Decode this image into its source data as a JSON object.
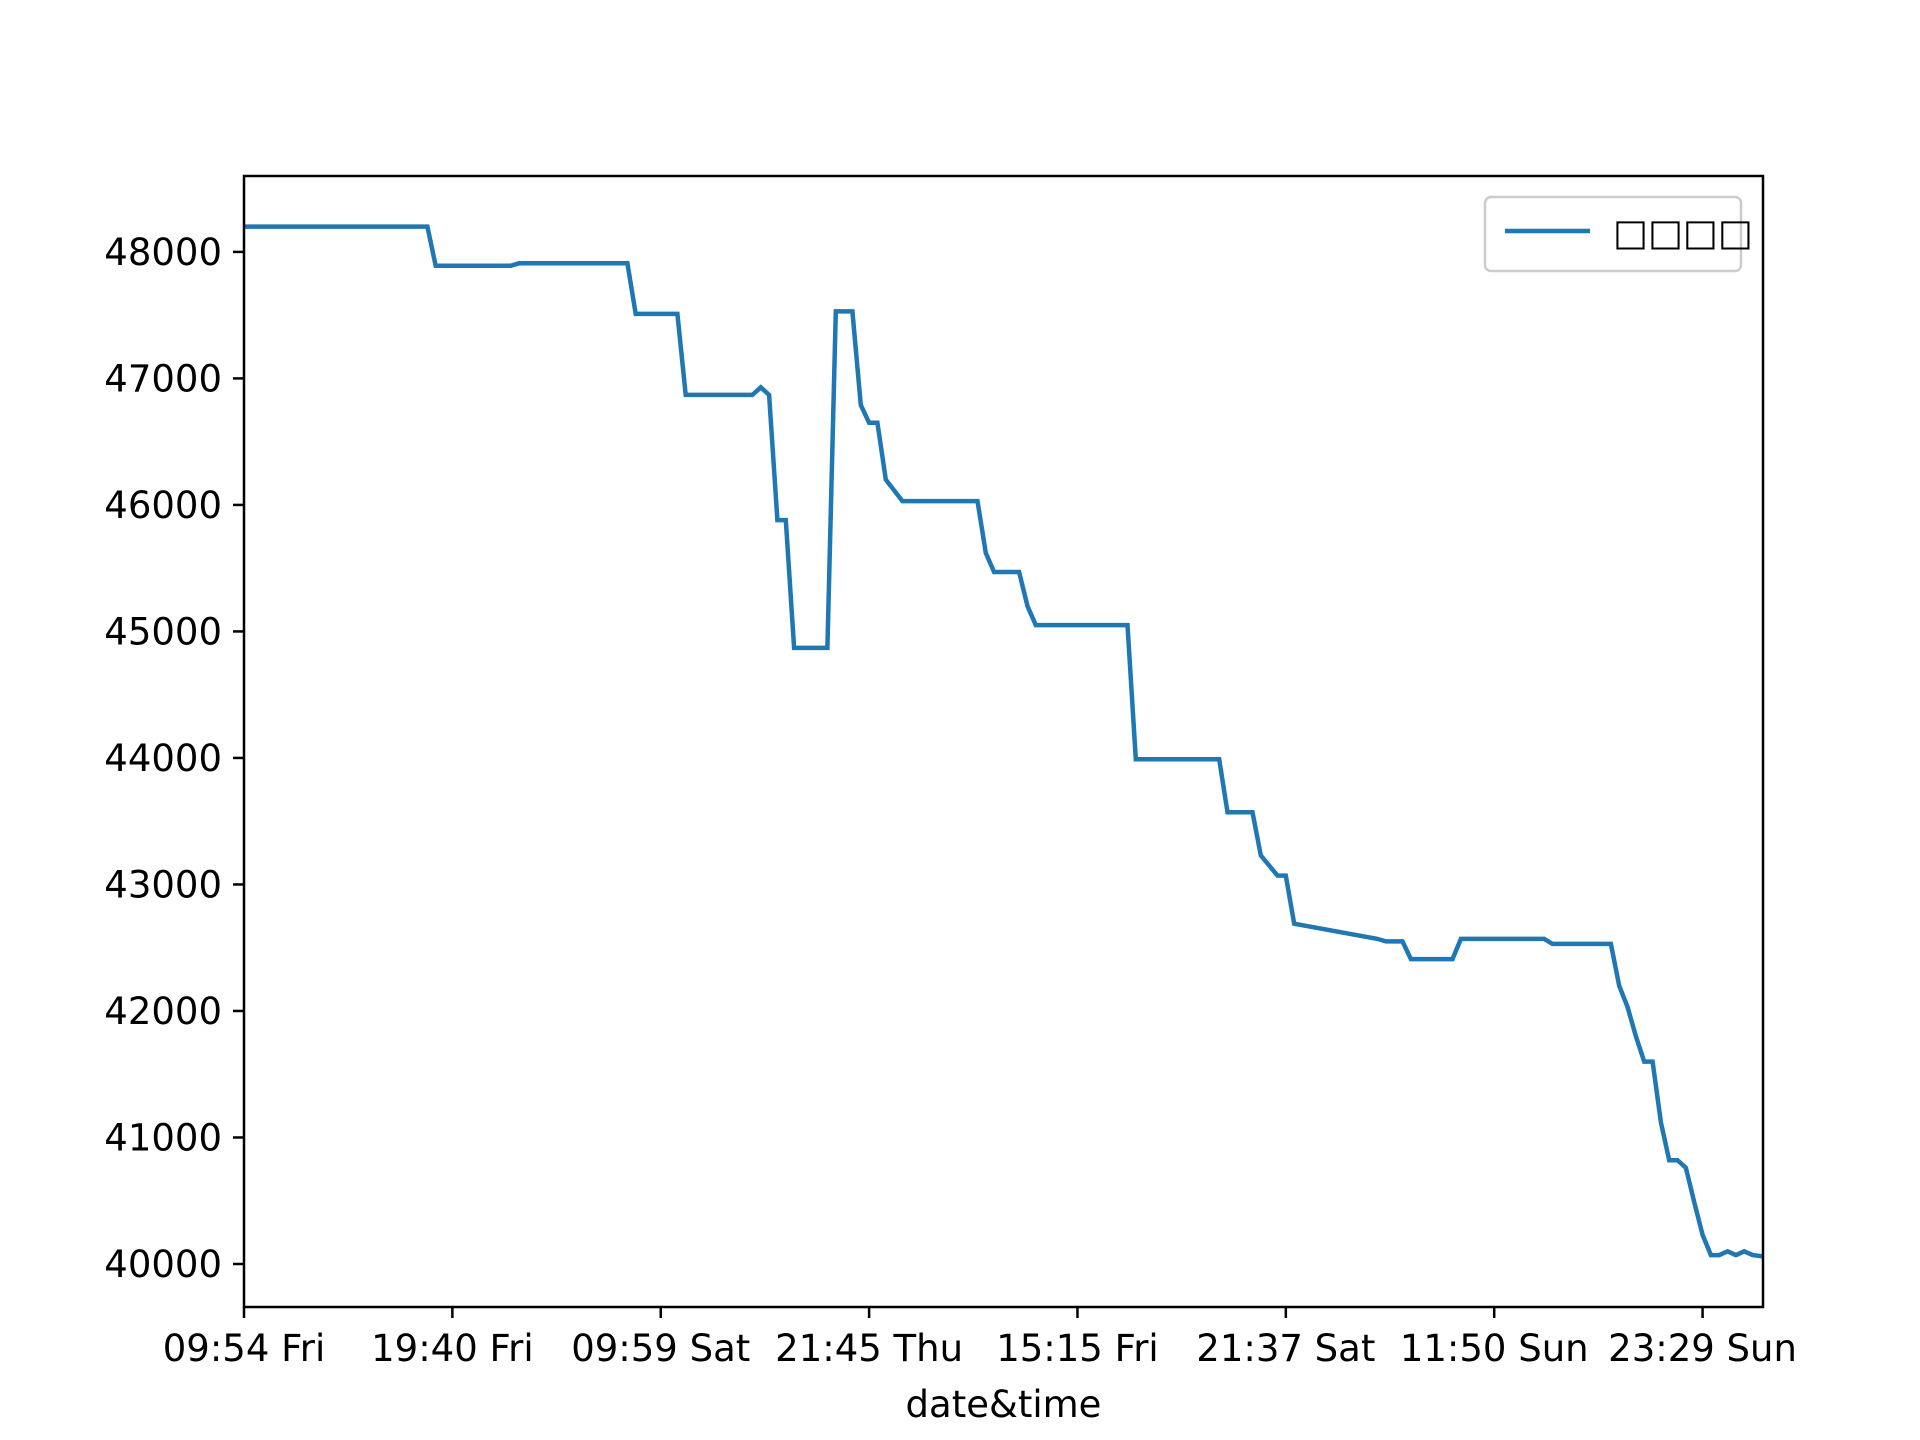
{
  "chart_data": {
    "type": "line",
    "title": "",
    "xlabel": "date&time",
    "ylabel": "",
    "ylim": [
      39660,
      48600
    ],
    "yticks": [
      40000,
      41000,
      42000,
      43000,
      44000,
      45000,
      46000,
      47000,
      48000
    ],
    "ytick_labels": [
      "40000",
      "41000",
      "42000",
      "43000",
      "44000",
      "45000",
      "46000",
      "47000",
      "48000"
    ],
    "xlim": [
      0,
      72.9
    ],
    "xticks": [
      0,
      10,
      20,
      30,
      40,
      50,
      60,
      70
    ],
    "xtick_labels": [
      "09:54 Fri",
      "19:40 Fri",
      "09:59 Sat",
      "21:45 Thu",
      "15:15 Fri",
      "21:37 Sat",
      "11:50 Sun",
      "23:29 Sun"
    ],
    "grid": false,
    "legend": "top-right",
    "colors": {
      "line": "#1f77b4",
      "axis": "#000000",
      "legend_border": "#cccccc"
    },
    "series": [
      {
        "name": "□□□□",
        "x": [
          0,
          8.8,
          9.2,
          12.8,
          13.2,
          18.4,
          18.8,
          20.8,
          21.2,
          24.4,
          24.8,
          25.2,
          25.6,
          26.0,
          26.4,
          28.0,
          28.4,
          29.2,
          29.6,
          30.0,
          30.4,
          30.8,
          31.6,
          32.0,
          35.2,
          35.6,
          36.0,
          37.2,
          37.6,
          38.0,
          42.4,
          42.8,
          46.8,
          47.2,
          48.4,
          48.8,
          49.6,
          50.0,
          50.4,
          54.4,
          54.8,
          55.6,
          56.0,
          58.0,
          58.4,
          62.4,
          62.8,
          65.6,
          66.0,
          66.4,
          66.8,
          67.2,
          67.6,
          68.0,
          68.4,
          68.8,
          69.2,
          69.6,
          70.0,
          70.4,
          70.8,
          71.2,
          71.6,
          72.0,
          72.4,
          72.9
        ],
        "values": [
          48200,
          48200,
          47890,
          47890,
          47910,
          47910,
          47510,
          47510,
          46870,
          46870,
          46930,
          46870,
          45880,
          45880,
          44870,
          44870,
          47530,
          47530,
          46790,
          46650,
          46650,
          46200,
          46030,
          46030,
          46030,
          45620,
          45470,
          45470,
          45200,
          45050,
          45050,
          43990,
          43990,
          43570,
          43570,
          43230,
          43070,
          43070,
          42690,
          42570,
          42550,
          42550,
          42410,
          42410,
          42570,
          42570,
          42530,
          42530,
          42200,
          42030,
          41800,
          41600,
          41600,
          41120,
          40820,
          40820,
          40760,
          40490,
          40230,
          40070,
          40070,
          40100,
          40070,
          40100,
          40070,
          40060
        ]
      }
    ]
  }
}
